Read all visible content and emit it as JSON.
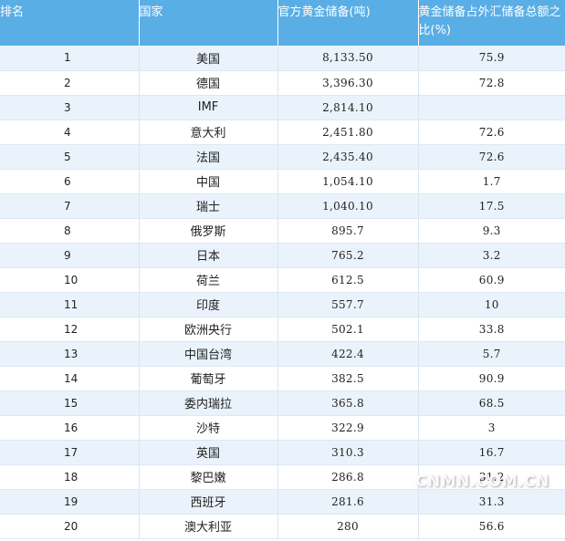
{
  "headers": {
    "rank": "排名",
    "country": "国家",
    "reserve": "官方黄金储备(吨)",
    "ratio": "黄金储备占外汇储备总额之比(%)"
  },
  "rows": [
    {
      "rank": "1",
      "country": "美国",
      "reserve": "8,133.50",
      "ratio": "75.9"
    },
    {
      "rank": "2",
      "country": "德国",
      "reserve": "3,396.30",
      "ratio": "72.8"
    },
    {
      "rank": "3",
      "country": "IMF",
      "reserve": "2,814.10",
      "ratio": ""
    },
    {
      "rank": "4",
      "country": "意大利",
      "reserve": "2,451.80",
      "ratio": "72.6"
    },
    {
      "rank": "5",
      "country": "法国",
      "reserve": "2,435.40",
      "ratio": "72.6"
    },
    {
      "rank": "6",
      "country": "中国",
      "reserve": "1,054.10",
      "ratio": "1.7"
    },
    {
      "rank": "7",
      "country": "瑞士",
      "reserve": "1,040.10",
      "ratio": "17.5"
    },
    {
      "rank": "8",
      "country": "俄罗斯",
      "reserve": "895.7",
      "ratio": "9.3"
    },
    {
      "rank": "9",
      "country": "日本",
      "reserve": "765.2",
      "ratio": "3.2"
    },
    {
      "rank": "10",
      "country": "荷兰",
      "reserve": "612.5",
      "ratio": "60.9"
    },
    {
      "rank": "11",
      "country": "印度",
      "reserve": "557.7",
      "ratio": "10"
    },
    {
      "rank": "12",
      "country": "欧洲央行",
      "reserve": "502.1",
      "ratio": "33.8"
    },
    {
      "rank": "13",
      "country": "中国台湾",
      "reserve": "422.4",
      "ratio": "5.7"
    },
    {
      "rank": "14",
      "country": "葡萄牙",
      "reserve": "382.5",
      "ratio": "90.9"
    },
    {
      "rank": "15",
      "country": "委内瑞拉",
      "reserve": "365.8",
      "ratio": "68.5"
    },
    {
      "rank": "16",
      "country": "沙特",
      "reserve": "322.9",
      "ratio": "3"
    },
    {
      "rank": "17",
      "country": "英国",
      "reserve": "310.3",
      "ratio": "16.7"
    },
    {
      "rank": "18",
      "country": "黎巴嫩",
      "reserve": "286.8",
      "ratio": "31.2"
    },
    {
      "rank": "19",
      "country": "西班牙",
      "reserve": "281.6",
      "ratio": "31.3"
    },
    {
      "rank": "20",
      "country": "澳大利亚",
      "reserve": "280",
      "ratio": "56.6"
    }
  ],
  "watermark": "CNMN.COM.CN",
  "colors": {
    "header_bg": "#5aaee6",
    "row_alt_bg": "#eaf3fb"
  }
}
